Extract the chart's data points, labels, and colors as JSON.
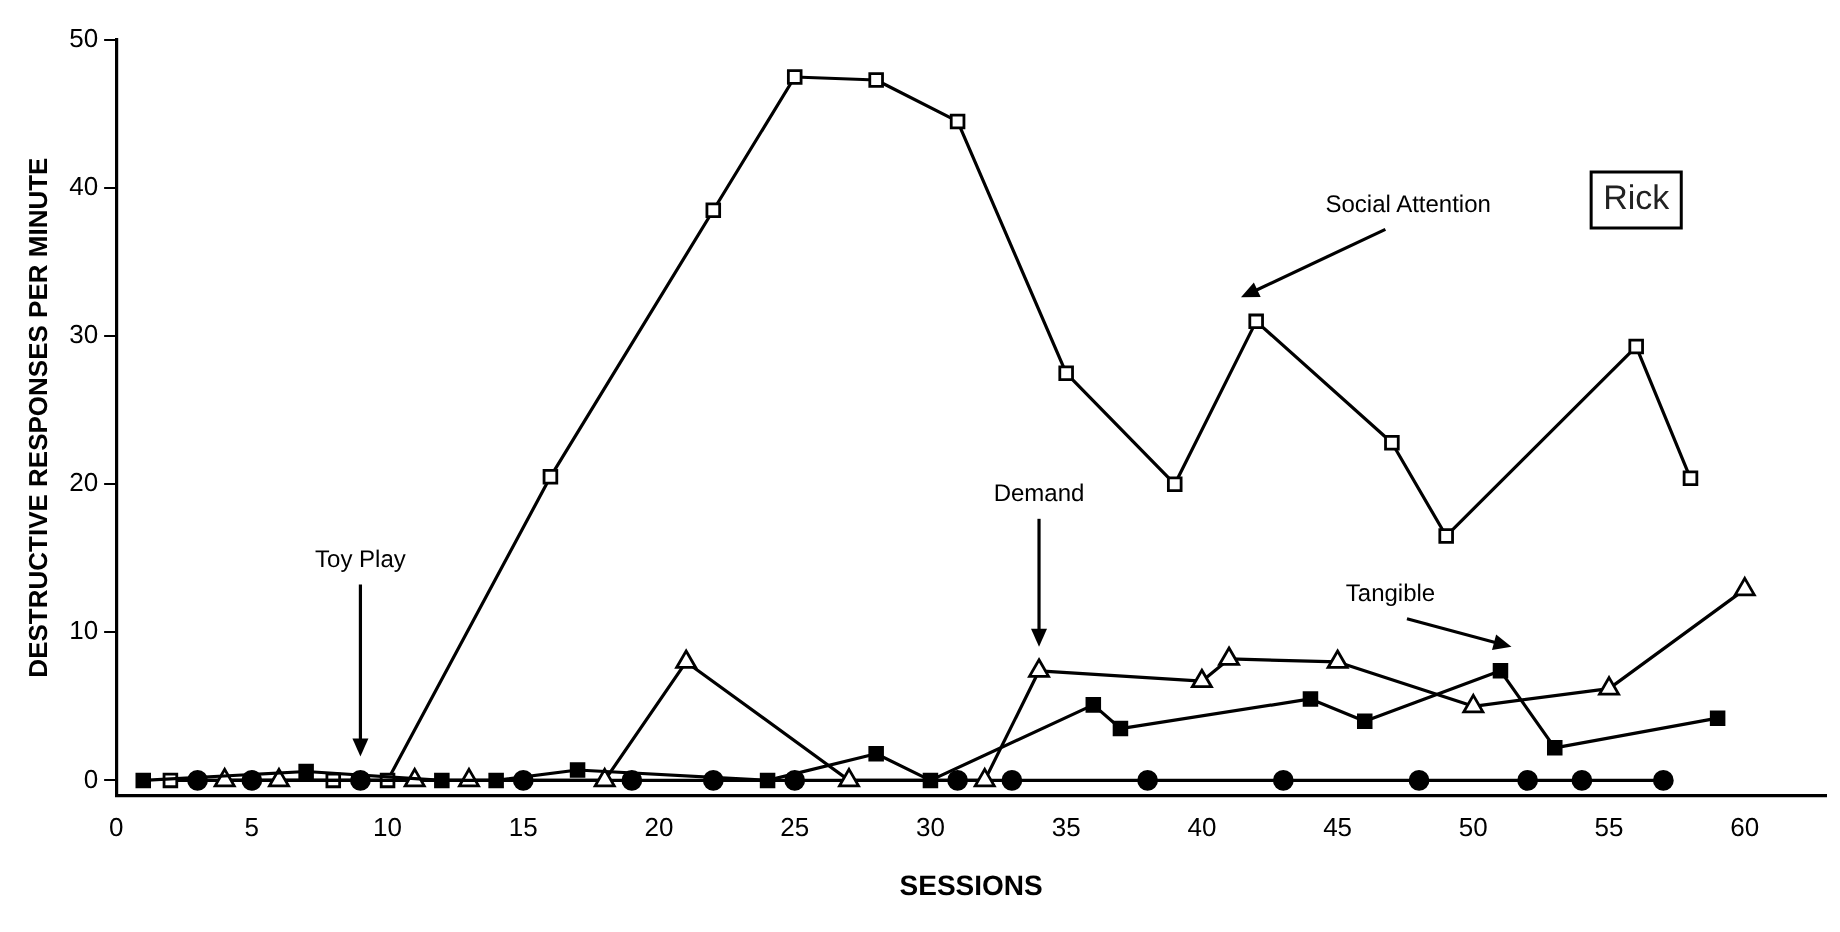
{
  "chart_data": {
    "type": "line",
    "xlabel": "SESSIONS",
    "ylabel": "DESTRUCTIVE RESPONSES PER MINUTE",
    "xlim": [
      0,
      63
    ],
    "ylim": [
      -1,
      50
    ],
    "xticks": [
      0,
      5,
      10,
      15,
      20,
      25,
      30,
      35,
      40,
      45,
      50,
      55,
      60
    ],
    "yticks": [
      0,
      10,
      20,
      30,
      40,
      50
    ],
    "grid": false,
    "legend": false,
    "line_style": "solid",
    "series": [
      {
        "color": "#000000",
        "marker": "square",
        "x": [
          2,
          8,
          10,
          16,
          22,
          25,
          28,
          31,
          35,
          39,
          42,
          47,
          49,
          56,
          58
        ],
        "values": [
          0,
          0,
          0,
          20.5,
          38.5,
          47.5,
          47.3,
          44.5,
          27.5,
          20,
          31,
          22.8,
          16.5,
          29.3,
          20.4
        ]
      },
      {
        "color": "#000000",
        "marker": "circle",
        "x": [
          3,
          5,
          9,
          15,
          19,
          22,
          25,
          31,
          33,
          38,
          43,
          48,
          52,
          54,
          57
        ],
        "values": [
          0,
          0,
          0,
          0,
          0,
          0,
          0,
          0,
          0,
          0,
          0,
          0,
          0,
          0,
          0
        ]
      },
      {
        "color": "#000000",
        "marker": "triangle",
        "x": [
          4,
          6,
          11,
          13,
          18,
          21,
          27,
          32,
          34,
          40,
          41,
          45,
          50,
          55,
          60
        ],
        "values": [
          0,
          0,
          0,
          0,
          0,
          8,
          0,
          0,
          7.4,
          6.7,
          8.2,
          8,
          5,
          6.2,
          12.9
        ]
      },
      {
        "color": "#000000",
        "marker": "square",
        "x": [
          1,
          7,
          12,
          14,
          17,
          24,
          28,
          30,
          36,
          37,
          44,
          46,
          51,
          53,
          59
        ],
        "values": [
          0,
          0.6,
          0,
          0,
          0.7,
          0,
          1.8,
          0,
          5.1,
          3.5,
          5.5,
          4,
          7.4,
          2.2,
          4.2
        ]
      }
    ],
    "annotations": [
      "Toy Play",
      "Demand",
      "Tangible",
      "Social Attention",
      "Rick"
    ]
  }
}
